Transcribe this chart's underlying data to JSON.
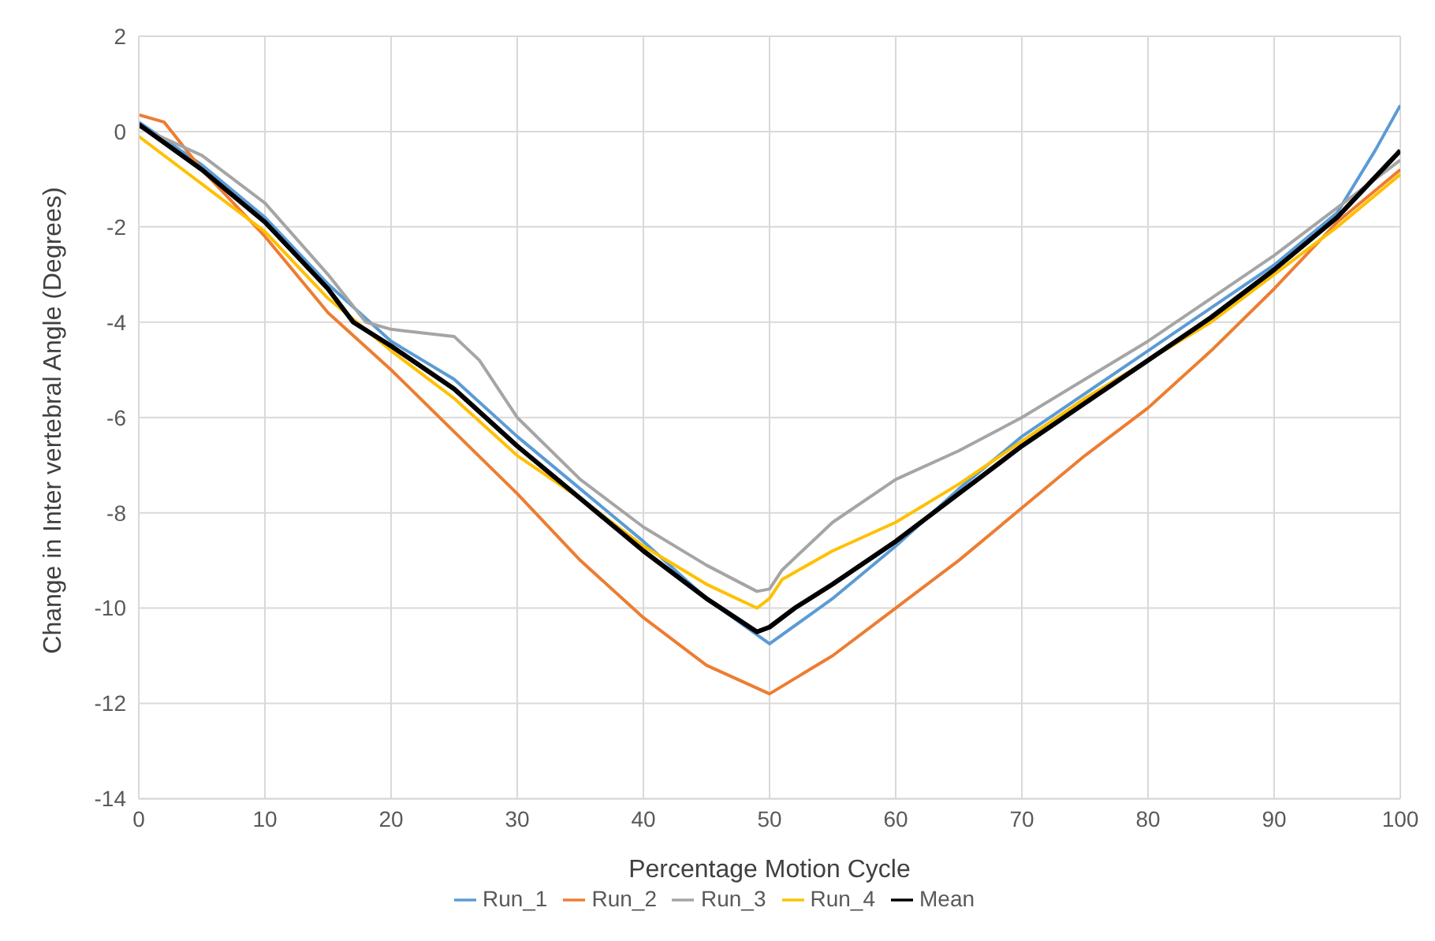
{
  "chart_data": {
    "type": "line",
    "xlabel": "Percentage Motion Cycle",
    "ylabel": "Change in Inter vertebral Angle (Degrees)",
    "xlim": [
      0,
      100
    ],
    "xticks": [
      0,
      10,
      20,
      30,
      40,
      50,
      60,
      70,
      80,
      90,
      100
    ],
    "ylim": [
      -14,
      2
    ],
    "yticks": [
      -14,
      -12,
      -10,
      -8,
      -6,
      -4,
      -2,
      0,
      2
    ],
    "grid": true,
    "legend": "bottom",
    "marker": "none",
    "line_style": "solid",
    "series": [
      {
        "name": "Run_1",
        "color": "#5b9bd5",
        "x": [
          0,
          5,
          10,
          15,
          20,
          25,
          30,
          35,
          40,
          45,
          50,
          55,
          60,
          65,
          70,
          75,
          80,
          85,
          90,
          95,
          98,
          100
        ],
        "values": [
          0.2,
          -0.7,
          -1.8,
          -3.2,
          -4.4,
          -5.2,
          -6.4,
          -7.5,
          -8.6,
          -9.8,
          -10.75,
          -9.8,
          -8.7,
          -7.5,
          -6.4,
          -5.5,
          -4.6,
          -3.7,
          -2.8,
          -1.7,
          -0.4,
          0.55
        ]
      },
      {
        "name": "Run_2",
        "color": "#ed7d31",
        "x": [
          0,
          2,
          5,
          10,
          15,
          20,
          25,
          30,
          35,
          40,
          45,
          50,
          55,
          60,
          65,
          70,
          75,
          80,
          85,
          90,
          95,
          100
        ],
        "values": [
          0.35,
          0.2,
          -0.8,
          -2.2,
          -3.8,
          -5.0,
          -6.3,
          -7.6,
          -9.0,
          -10.2,
          -11.2,
          -11.8,
          -11.0,
          -10.0,
          -9.0,
          -7.9,
          -6.8,
          -5.8,
          -4.6,
          -3.3,
          -1.9,
          -0.8
        ]
      },
      {
        "name": "Run_3",
        "color": "#a5a5a5",
        "x": [
          0,
          5,
          10,
          15,
          18,
          20,
          25,
          27,
          30,
          35,
          40,
          45,
          49,
          50,
          51,
          55,
          60,
          65,
          70,
          75,
          80,
          85,
          90,
          95,
          100
        ],
        "values": [
          0.1,
          -0.5,
          -1.5,
          -3.0,
          -4.0,
          -4.15,
          -4.3,
          -4.8,
          -6.0,
          -7.3,
          -8.3,
          -9.1,
          -9.65,
          -9.6,
          -9.2,
          -8.2,
          -7.3,
          -6.7,
          -6.0,
          -5.2,
          -4.4,
          -3.5,
          -2.6,
          -1.6,
          -0.6
        ]
      },
      {
        "name": "Run_4",
        "color": "#ffc000",
        "x": [
          0,
          5,
          10,
          15,
          20,
          25,
          30,
          35,
          40,
          45,
          49,
          50,
          51,
          55,
          60,
          65,
          70,
          75,
          80,
          85,
          90,
          95,
          100
        ],
        "values": [
          -0.1,
          -1.1,
          -2.1,
          -3.5,
          -4.6,
          -5.6,
          -6.8,
          -7.7,
          -8.7,
          -9.5,
          -10.0,
          -9.8,
          -9.4,
          -8.8,
          -8.2,
          -7.4,
          -6.5,
          -5.6,
          -4.8,
          -4.0,
          -3.0,
          -2.0,
          -0.9
        ]
      },
      {
        "name": "Mean",
        "color": "#000000",
        "x": [
          0,
          5,
          10,
          15,
          17,
          20,
          25,
          30,
          35,
          40,
          45,
          49,
          50,
          52,
          55,
          60,
          65,
          70,
          75,
          80,
          85,
          90,
          95,
          100
        ],
        "values": [
          0.15,
          -0.8,
          -1.9,
          -3.3,
          -4.0,
          -4.5,
          -5.4,
          -6.6,
          -7.7,
          -8.8,
          -9.8,
          -10.5,
          -10.4,
          -10.0,
          -9.5,
          -8.6,
          -7.6,
          -6.6,
          -5.7,
          -4.8,
          -3.9,
          -2.9,
          -1.8,
          -0.4
        ]
      }
    ]
  }
}
